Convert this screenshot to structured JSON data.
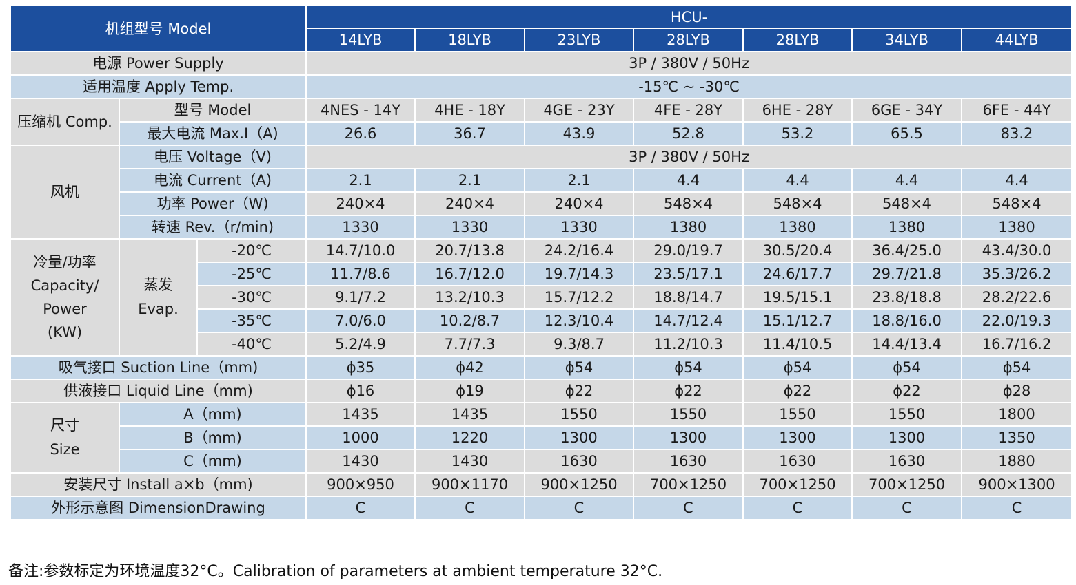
{
  "header": {
    "model_label": "机组型号 Model",
    "series_prefix": "HCU-",
    "models": [
      "14LYB",
      "18LYB",
      "23LYB",
      "28LYB",
      "28LYB",
      "34LYB",
      "44LYB"
    ]
  },
  "power_supply": {
    "label": "电源 Power Supply",
    "value": "3P / 380V / 50Hz"
  },
  "apply_temp": {
    "label": "适用温度 Apply Temp.",
    "value": "-15℃ ~ -30℃"
  },
  "compressor": {
    "group_label": "压缩机 Comp.",
    "model_label": "型号 Model",
    "models": [
      "4NES - 14Y",
      "4HE - 18Y",
      "4GE - 23Y",
      "4FE - 28Y",
      "6HE - 28Y",
      "6GE - 34Y",
      "6FE - 44Y"
    ],
    "current_label": "最大电流 Max.I（A)",
    "currents": [
      "26.6",
      "36.7",
      "43.9",
      "52.8",
      "53.2",
      "65.5",
      "83.2"
    ]
  },
  "fan": {
    "group_label": "风机",
    "voltage_label": "电压 Voltage（V)",
    "voltage_value": "3P / 380V / 50Hz",
    "current_label": "电流 Current（A)",
    "currents": [
      "2.1",
      "2.1",
      "2.1",
      "4.4",
      "4.4",
      "4.4",
      "4.4"
    ],
    "power_label": "功率 Power（W)",
    "powers": [
      "240×4",
      "240×4",
      "240×4",
      "548×4",
      "548×4",
      "548×4",
      "548×4"
    ],
    "speed_label": "转速 Rev.（r/min)",
    "speeds": [
      "1330",
      "1330",
      "1330",
      "1380",
      "1380",
      "1380",
      "1380"
    ]
  },
  "capacity": {
    "group_label": "冷量/功率 Capacity/ Power (KW)",
    "evap_label": "蒸发 Evap.",
    "rows": [
      {
        "temp": "-20℃",
        "values": [
          "14.7/10.0",
          "20.7/13.8",
          "24.2/16.4",
          "29.0/19.7",
          "30.5/20.4",
          "36.4/25.0",
          "43.4/30.0"
        ]
      },
      {
        "temp": "-25℃",
        "values": [
          "11.7/8.6",
          "16.7/12.0",
          "19.7/14.3",
          "23.5/17.1",
          "24.6/17.7",
          "29.7/21.8",
          "35.3/26.2"
        ]
      },
      {
        "temp": "-30℃",
        "values": [
          "9.1/7.2",
          "13.2/10.3",
          "15.7/12.2",
          "18.8/14.7",
          "19.5/15.1",
          "23.8/18.8",
          "28.2/22.6"
        ]
      },
      {
        "temp": "-35℃",
        "values": [
          "7.0/6.0",
          "10.2/8.7",
          "12.3/10.4",
          "14.7/12.4",
          "15.1/12.7",
          "18.8/16.0",
          "22.0/19.3"
        ]
      },
      {
        "temp": "-40℃",
        "values": [
          "5.2/4.9",
          "7.7/7.3",
          "9.3/8.7",
          "11.2/10.3",
          "11.4/10.5",
          "14.4/13.4",
          "16.7/16.2"
        ]
      }
    ]
  },
  "suction_line": {
    "label": "吸气接口 Suction Line（mm)",
    "values": [
      "ϕ35",
      "ϕ42",
      "ϕ54",
      "ϕ54",
      "ϕ54",
      "ϕ54",
      "ϕ54"
    ]
  },
  "liquid_line": {
    "label": "供液接口 Liquid Line（mm)",
    "values": [
      "ϕ16",
      "ϕ19",
      "ϕ22",
      "ϕ22",
      "ϕ22",
      "ϕ22",
      "ϕ28"
    ]
  },
  "size": {
    "group_label": "尺寸 Size",
    "rows": [
      {
        "label": "A（mm)",
        "values": [
          "1435",
          "1435",
          "1550",
          "1550",
          "1550",
          "1550",
          "1800"
        ]
      },
      {
        "label": "B（mm)",
        "values": [
          "1000",
          "1220",
          "1300",
          "1300",
          "1300",
          "1300",
          "1350"
        ]
      },
      {
        "label": "C（mm)",
        "values": [
          "1430",
          "1430",
          "1630",
          "1630",
          "1630",
          "1630",
          "1880"
        ]
      }
    ]
  },
  "install_size": {
    "label": "安装尺寸  Install a×b（mm)",
    "values": [
      "900×950",
      "900×1170",
      "900×1250",
      "700×1250",
      "700×1250",
      "700×1250",
      "900×1300"
    ]
  },
  "dimension_drawing": {
    "label": "外形示意图 DimensionDrawing",
    "values": [
      "C",
      "C",
      "C",
      "C",
      "C",
      "C",
      "C"
    ]
  },
  "note": "备注:参数标定为环境温度32°C。Calibration of parameters at ambient temperature 32°C."
}
